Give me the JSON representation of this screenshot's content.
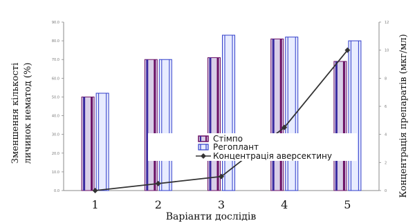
{
  "chart_data": {
    "type": "bar",
    "categories": [
      "1",
      "2",
      "3",
      "4",
      "5"
    ],
    "series": [
      {
        "name": "Стімпо",
        "type": "bar",
        "axis": "left",
        "values": [
          50,
          70,
          71,
          81,
          69
        ]
      },
      {
        "name": "Регоплант",
        "type": "bar",
        "axis": "left",
        "values": [
          52,
          70,
          83,
          82,
          80
        ]
      },
      {
        "name": "Концентрація аверсектину",
        "type": "line",
        "axis": "right",
        "values": [
          0,
          0.5,
          1,
          4.5,
          10
        ]
      }
    ],
    "xlabel": "Варіанти дослідів",
    "ylabel": "Зменшення кількості личинок нематод (%)",
    "ylabel_lines": [
      "Зменшення кількості",
      "личинок нематод (%)"
    ],
    "y2label": "Концентрація препаратів  (мкг/мл)",
    "ylim": [
      0,
      90
    ],
    "y2lim": [
      0,
      12
    ],
    "yticks": [
      "0.0",
      "10.0",
      "20.0",
      "30.0",
      "40.0",
      "50.0",
      "60.0",
      "70.0",
      "80.0",
      "90.0"
    ],
    "y2ticks": [
      "0",
      "2",
      "4",
      "6",
      "8",
      "10",
      "12"
    ],
    "legend": {
      "placement": "center",
      "entries": [
        "Стімпо",
        "Регоплант",
        "Концентрація аверсектину"
      ]
    },
    "colors": {
      "stimpo_fill": "#d9cfe8",
      "stimpo_edge": "#6a0f64",
      "stimpo_stripe": "#3a2aa0",
      "regoplant_fill": "#e8ecff",
      "regoplant_edge": "#2f3cc9",
      "line": "#333333",
      "axis": "#888888"
    }
  }
}
